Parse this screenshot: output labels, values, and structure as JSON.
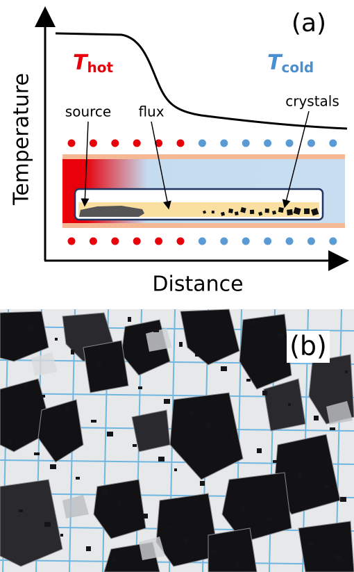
{
  "panel_a": {
    "label": "(a)",
    "y_axis_label": "Temperature",
    "x_axis_label": "Distance",
    "hot_label": {
      "symbol": "T",
      "subscript": "hot"
    },
    "cold_label": {
      "symbol": "T",
      "subscript": "cold"
    },
    "annotations": [
      "source",
      "flux",
      "crystals"
    ]
  },
  "panel_b": {
    "label": "(b)"
  }
}
